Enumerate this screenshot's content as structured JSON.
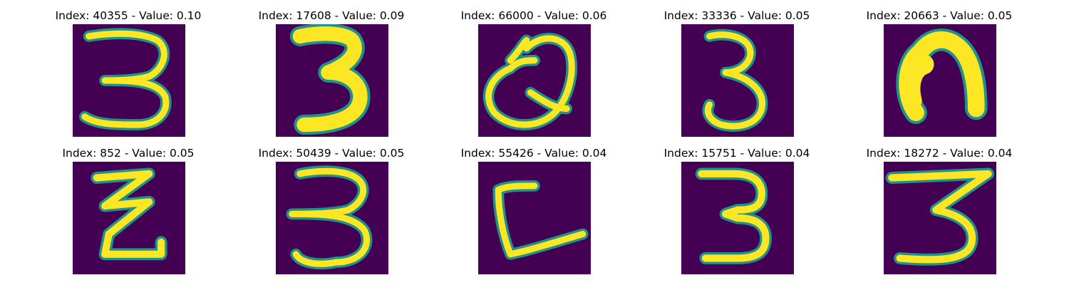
{
  "colors": {
    "background": "#440154",
    "stroke_edge": "#21918c",
    "stroke_core": "#fde725"
  },
  "grid": [
    {
      "title": "Index: 40355 - Value: 0.10",
      "glyph": "three-curly-icon"
    },
    {
      "title": "Index: 17608 - Value: 0.09",
      "glyph": "three-bold-icon"
    },
    {
      "title": "Index: 66000 - Value: 0.06",
      "glyph": "loop-scribble-icon"
    },
    {
      "title": "Index: 33336 - Value: 0.05",
      "glyph": "three-narrow-icon"
    },
    {
      "title": "Index: 20663 - Value: 0.05",
      "glyph": "n-arch-icon"
    },
    {
      "title": "Index: 852 - Value: 0.05",
      "glyph": "zigzag-icon"
    },
    {
      "title": "Index: 50439 - Value: 0.05",
      "glyph": "three-wide-icon"
    },
    {
      "title": "Index: 55426 - Value: 0.04",
      "glyph": "l-shape-icon"
    },
    {
      "title": "Index: 15751 - Value: 0.04",
      "glyph": "three-blocky-icon"
    },
    {
      "title": "Index: 18272 - Value: 0.04",
      "glyph": "three-flat-top-icon"
    }
  ]
}
